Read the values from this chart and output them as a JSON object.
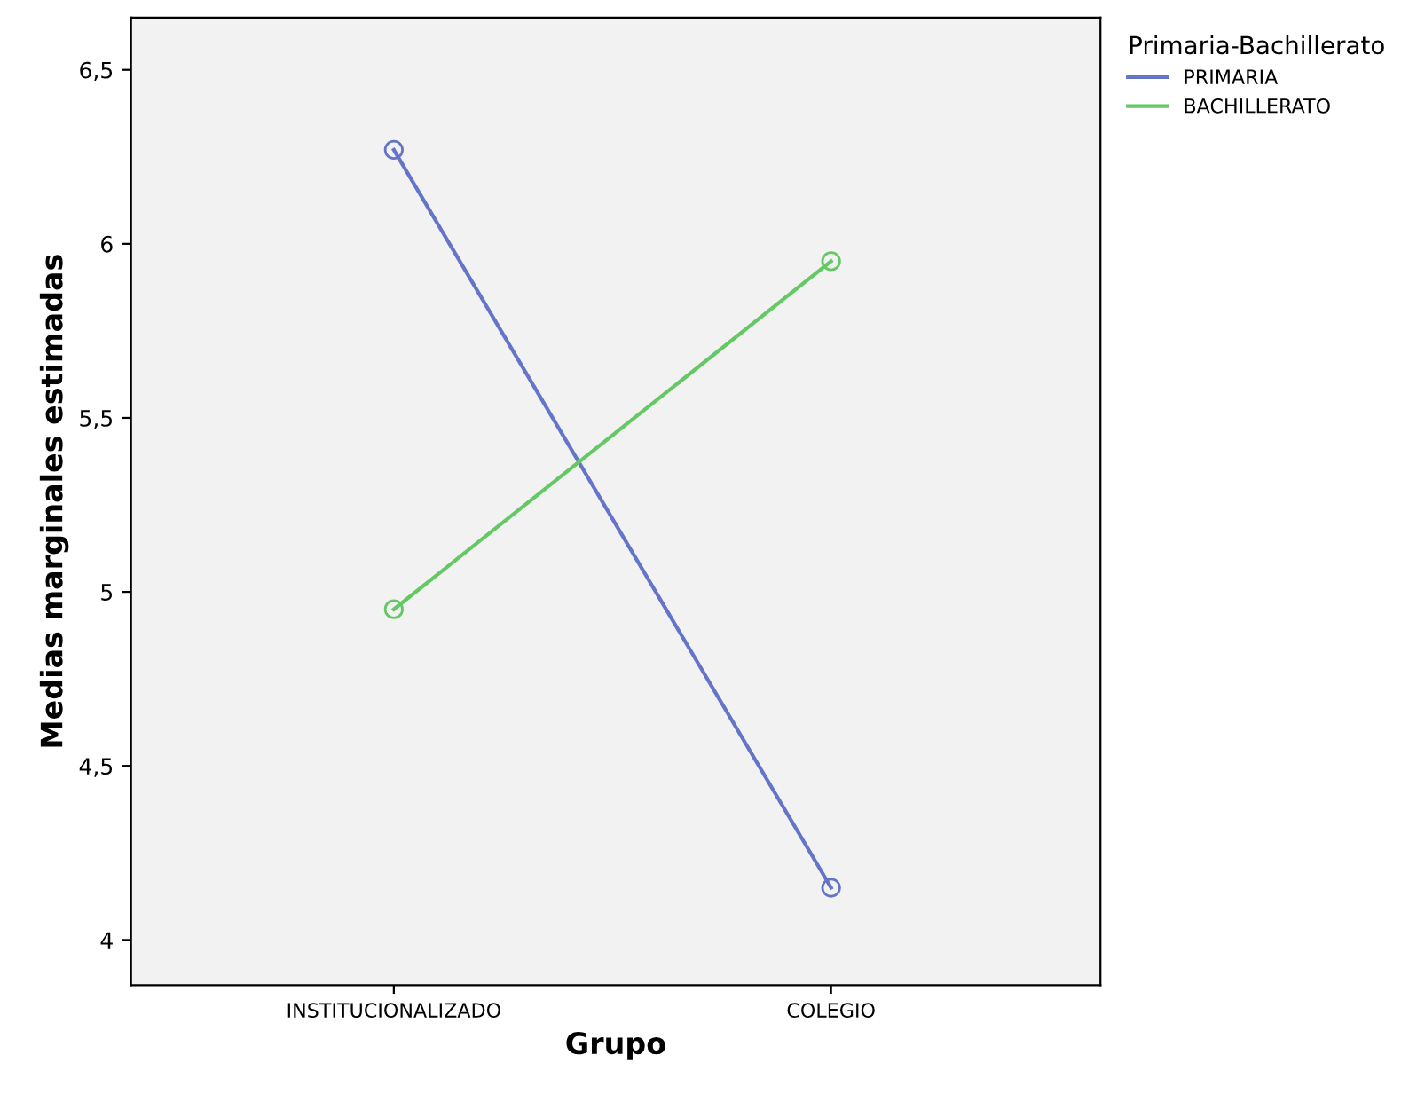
{
  "chart_data": {
    "type": "line",
    "xlabel": "Grupo",
    "ylabel": "Medias marginales estimadas",
    "legend_title": "Primaria-Bachillerato",
    "categories": [
      "INSTITUCIONALIZADO",
      "COLEGIO"
    ],
    "series": [
      {
        "name": "PRIMARIA",
        "color": "#6474c8",
        "values": [
          6.27,
          4.15
        ]
      },
      {
        "name": "BACHILLERATO",
        "color": "#64c864",
        "values": [
          4.95,
          5.95
        ]
      }
    ],
    "ylim": [
      3.87,
      6.65
    ],
    "yticks": [
      4,
      {
        "value": 4.5,
        "label": "4,5"
      },
      5,
      {
        "value": 5.5,
        "label": "5,5"
      },
      6,
      {
        "value": 6.5,
        "label": "6,5"
      }
    ],
    "marker": "circle",
    "line_style": "solid",
    "grid": false,
    "legend": "top right"
  }
}
